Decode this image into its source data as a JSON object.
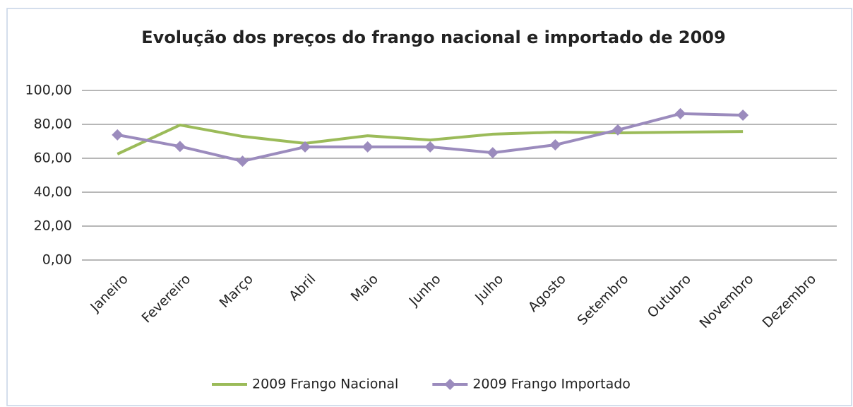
{
  "chart_data": {
    "type": "line",
    "title": "Evolução dos preços do frango nacional e importado de 2009",
    "categories": [
      "Janeiro",
      "Fevereiro",
      "Março",
      "Abril",
      "Maio",
      "Junho",
      "Julho",
      "Agosto",
      "Setembro",
      "Outubro",
      "Novembro",
      "Dezembro"
    ],
    "series": [
      {
        "name": "2009 Frango Nacional",
        "color": "#9bbb59",
        "marker": "none",
        "values": [
          62.5,
          79.6,
          72.9,
          68.8,
          73.3,
          70.8,
          74.2,
          75.4,
          75.0,
          75.4,
          75.8,
          null
        ]
      },
      {
        "name": "2009 Frango Importado",
        "color": "#9b8bbd",
        "marker": "diamond",
        "values": [
          73.8,
          67.0,
          58.3,
          66.7,
          66.7,
          66.7,
          63.3,
          67.9,
          76.7,
          86.3,
          85.4,
          null
        ]
      }
    ],
    "ylim": [
      0,
      100
    ],
    "yticks": [
      {
        "value": 0,
        "label": "0,00"
      },
      {
        "value": 20,
        "label": "20,00"
      },
      {
        "value": 40,
        "label": "40,00"
      },
      {
        "value": 60,
        "label": "60,00"
      },
      {
        "value": 80,
        "label": "80,00"
      },
      {
        "value": 100,
        "label": "100,00"
      }
    ],
    "grid": true,
    "legend": "bottom"
  }
}
